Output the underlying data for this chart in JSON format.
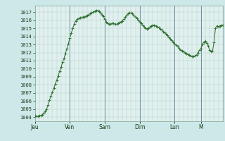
{
  "background_color": "#cce8e8",
  "plot_bg_color": "#dff0ee",
  "line_color": "#2d6e2d",
  "marker_color": "#2d6e2d",
  "ylim": [
    1003.5,
    1017.8
  ],
  "yticks": [
    1004,
    1005,
    1006,
    1007,
    1008,
    1009,
    1010,
    1011,
    1012,
    1013,
    1014,
    1015,
    1016,
    1017
  ],
  "day_labels": [
    "Jeu",
    "Ven",
    "Sam",
    "Dim",
    "Lun",
    "M"
  ],
  "day_positions": [
    0,
    24,
    48,
    72,
    96,
    114
  ],
  "pressure_data": [
    1004.2,
    1004.1,
    1004.1,
    1004.2,
    1004.2,
    1004.3,
    1004.5,
    1004.7,
    1005.0,
    1005.5,
    1006.1,
    1006.6,
    1007.1,
    1007.6,
    1008.1,
    1008.6,
    1009.1,
    1009.7,
    1010.2,
    1010.8,
    1011.3,
    1011.9,
    1012.5,
    1013.1,
    1013.8,
    1014.4,
    1015.0,
    1015.5,
    1015.9,
    1016.1,
    1016.2,
    1016.3,
    1016.3,
    1016.4,
    1016.4,
    1016.5,
    1016.6,
    1016.7,
    1016.8,
    1016.9,
    1017.0,
    1017.1,
    1017.2,
    1017.2,
    1017.1,
    1016.9,
    1016.7,
    1016.5,
    1016.1,
    1015.8,
    1015.6,
    1015.5,
    1015.5,
    1015.6,
    1015.6,
    1015.5,
    1015.5,
    1015.6,
    1015.7,
    1015.8,
    1015.9,
    1016.1,
    1016.4,
    1016.6,
    1016.8,
    1016.9,
    1016.9,
    1016.8,
    1016.6,
    1016.4,
    1016.2,
    1016.0,
    1015.8,
    1015.6,
    1015.4,
    1015.2,
    1015.0,
    1014.9,
    1015.0,
    1015.2,
    1015.3,
    1015.4,
    1015.4,
    1015.3,
    1015.2,
    1015.1,
    1014.9,
    1014.8,
    1014.6,
    1014.5,
    1014.3,
    1014.1,
    1013.9,
    1013.7,
    1013.5,
    1013.3,
    1013.1,
    1012.9,
    1012.7,
    1012.5,
    1012.3,
    1012.2,
    1012.1,
    1012.0,
    1011.9,
    1011.8,
    1011.7,
    1011.6,
    1011.5,
    1011.5,
    1011.6,
    1011.7,
    1012.0,
    1012.3,
    1012.5,
    1013.0,
    1013.3,
    1013.4,
    1013.2,
    1012.8,
    1012.3,
    1012.1,
    1012.2,
    1013.3,
    1015.0,
    1015.3,
    1015.2,
    1015.3,
    1015.4,
    1015.4
  ]
}
